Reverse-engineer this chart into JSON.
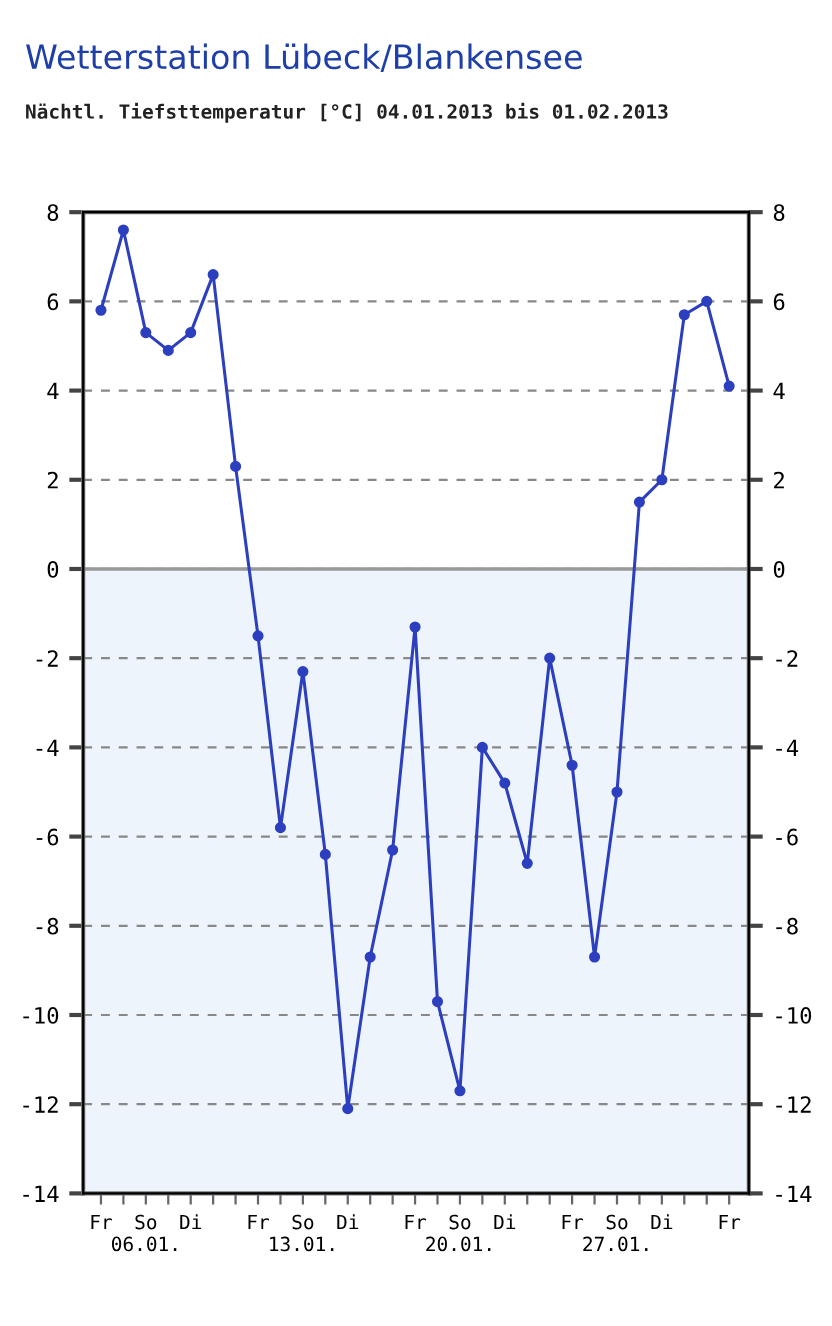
{
  "chart_data": {
    "type": "line",
    "title": "Wetterstation Lübeck/Blankensee",
    "subtitle": "Nächtl. Tiefsttemperatur [°C] 04.01.2013 bis 01.02.2013",
    "x": [
      "2013-01-04",
      "2013-01-05",
      "2013-01-06",
      "2013-01-07",
      "2013-01-08",
      "2013-01-09",
      "2013-01-10",
      "2013-01-11",
      "2013-01-12",
      "2013-01-13",
      "2013-01-14",
      "2013-01-15",
      "2013-01-16",
      "2013-01-17",
      "2013-01-18",
      "2013-01-19",
      "2013-01-20",
      "2013-01-21",
      "2013-01-22",
      "2013-01-23",
      "2013-01-24",
      "2013-01-25",
      "2013-01-26",
      "2013-01-27",
      "2013-01-28",
      "2013-01-29",
      "2013-01-30",
      "2013-01-31",
      "2013-02-01"
    ],
    "series": [
      {
        "color": "#2b3fbf",
        "values": [
          5.8,
          7.6,
          5.3,
          4.9,
          5.3,
          6.6,
          2.3,
          -1.5,
          -5.8,
          -2.3,
          -6.4,
          -12.1,
          -8.7,
          -6.3,
          -1.3,
          -9.7,
          -11.7,
          -4.0,
          -4.8,
          -6.6,
          -2.0,
          -4.4,
          -8.7,
          -5.0,
          1.5,
          2.0,
          5.7,
          6.0,
          4.1
        ]
      }
    ],
    "xlim": [
      "2013-01-03T05:00",
      "2013-02-01T21:00"
    ],
    "xticks": [
      {
        "value": "2013-01-04",
        "label": "Fr"
      },
      {
        "value": "2013-01-05",
        "label": null
      },
      {
        "value": "2013-01-06",
        "label": "So\n06.01."
      },
      {
        "value": "2013-01-07",
        "label": null
      },
      {
        "value": "2013-01-08",
        "label": "Di"
      },
      {
        "value": "2013-01-09",
        "label": null
      },
      {
        "value": "2013-01-10",
        "label": null
      },
      {
        "value": "2013-01-11",
        "label": "Fr"
      },
      {
        "value": "2013-01-12",
        "label": null
      },
      {
        "value": "2013-01-13",
        "label": "So\n13.01."
      },
      {
        "value": "2013-01-14",
        "label": null
      },
      {
        "value": "2013-01-15",
        "label": "Di"
      },
      {
        "value": "2013-01-16",
        "label": null
      },
      {
        "value": "2013-01-17",
        "label": null
      },
      {
        "value": "2013-01-18",
        "label": "Fr"
      },
      {
        "value": "2013-01-19",
        "label": null
      },
      {
        "value": "2013-01-20",
        "label": "So\n20.01."
      },
      {
        "value": "2013-01-21",
        "label": null
      },
      {
        "value": "2013-01-22",
        "label": "Di"
      },
      {
        "value": "2013-01-23",
        "label": null
      },
      {
        "value": "2013-01-24",
        "label": null
      },
      {
        "value": "2013-01-25",
        "label": "Fr"
      },
      {
        "value": "2013-01-26",
        "label": null
      },
      {
        "value": "2013-01-27",
        "label": "So\n27.01."
      },
      {
        "value": "2013-01-28",
        "label": null
      },
      {
        "value": "2013-01-29",
        "label": "Di"
      },
      {
        "value": "2013-01-30",
        "label": null
      },
      {
        "value": "2013-01-31",
        "label": null
      },
      {
        "value": "2013-02-01",
        "label": "Fr"
      }
    ],
    "ylim": [
      -14,
      8
    ],
    "yticks": [
      -14,
      -12,
      -10,
      -8,
      -6,
      -4,
      -2,
      0,
      2,
      4,
      6,
      8
    ],
    "y2lim": [
      -14,
      8
    ],
    "y2ticks": [
      -14,
      -12,
      -10,
      -8,
      -6,
      -4,
      -2,
      0,
      2,
      4,
      6,
      8
    ],
    "bands": [
      {
        "axis": "y",
        "from": -14,
        "to": 0,
        "color": "#eef4fb"
      }
    ],
    "ref_lines": [
      {
        "axis": "y",
        "value": 0,
        "color": "#999999",
        "line_style": "solid"
      }
    ],
    "grid": "y",
    "marker": "circle",
    "line_style": "solid"
  }
}
